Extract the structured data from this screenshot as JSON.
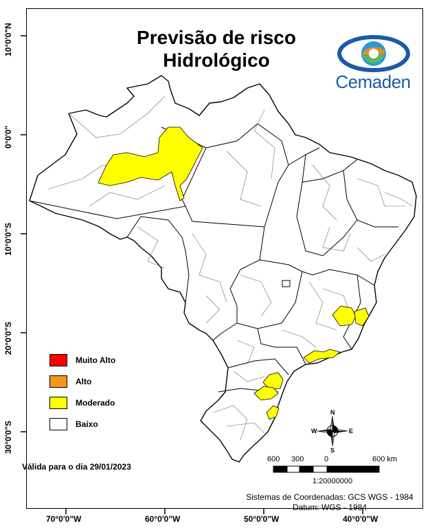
{
  "title": {
    "line1": "Previsão de risco",
    "line2": "Hidrológico"
  },
  "logo": {
    "text": "Cemaden",
    "colors": [
      "#1d5aa6",
      "#2d9ad6",
      "#f28c1e",
      "#5cb85c"
    ]
  },
  "latitude_labels": [
    "10°0'0\"N",
    "0°0'0\"",
    "10°0'0\"S",
    "20°0'0\"S",
    "30°0'0\"S"
  ],
  "longitude_labels": [
    "70°0'0\"W",
    "60°0'0\"W",
    "50°0'0\"W",
    "40°0'0\"W"
  ],
  "legend": [
    {
      "label": "Muito Alto",
      "color": "#ff0000"
    },
    {
      "label": "Alto",
      "color": "#f5951e"
    },
    {
      "label": "Moderado",
      "color": "#ffff00"
    },
    {
      "label": "Baixo",
      "color": "#ffffff"
    }
  ],
  "validity": "Válida para o dia 29/01/2023",
  "scale": {
    "ticks": [
      "600",
      "300",
      "0",
      "600 km"
    ],
    "ratio": "1:20000000"
  },
  "compass": {
    "n": "N",
    "s": "S",
    "e": "E",
    "w": "W"
  },
  "coordinate_system": {
    "line1": "Sistemas de Coordenadas: GCS WGS - 1984",
    "line2": "Datum: WGS - 1984"
  }
}
